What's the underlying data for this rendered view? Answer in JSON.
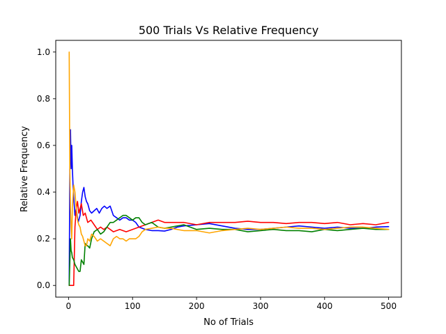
{
  "chart_data": {
    "type": "line",
    "title": "500 Trials Vs Relative Frequency",
    "xlabel": "No of Trials",
    "ylabel": "Relative Frequency",
    "xlim": [
      -20,
      520
    ],
    "ylim": [
      -0.05,
      1.05
    ],
    "xticks": [
      0,
      100,
      200,
      300,
      400,
      500
    ],
    "yticks": [
      0.0,
      0.2,
      0.4,
      0.6,
      0.8,
      1.0
    ],
    "xtick_labels": [
      "0",
      "100",
      "200",
      "300",
      "400",
      "500"
    ],
    "ytick_labels": [
      "0.0",
      "0.2",
      "0.4",
      "0.6",
      "0.8",
      "1.0"
    ],
    "grid": false,
    "legend": false,
    "series": [
      {
        "color": "#0000ff",
        "x": [
          1,
          2,
          3,
          4,
          5,
          6,
          7,
          8,
          10,
          12,
          15,
          18,
          20,
          22,
          24,
          26,
          28,
          30,
          33,
          36,
          40,
          44,
          48,
          52,
          56,
          60,
          65,
          70,
          75,
          80,
          85,
          90,
          95,
          100,
          105,
          110,
          115,
          120,
          130,
          140,
          150,
          160,
          170,
          180,
          200,
          220,
          240,
          260,
          280,
          300,
          320,
          340,
          360,
          380,
          400,
          420,
          440,
          460,
          480,
          500
        ],
        "y": [
          0.0,
          0.5,
          0.667,
          0.5,
          0.6,
          0.5,
          0.43,
          0.38,
          0.3,
          0.33,
          0.27,
          0.3,
          0.36,
          0.4,
          0.42,
          0.38,
          0.36,
          0.35,
          0.32,
          0.31,
          0.32,
          0.33,
          0.31,
          0.33,
          0.34,
          0.33,
          0.34,
          0.3,
          0.29,
          0.28,
          0.29,
          0.29,
          0.28,
          0.28,
          0.27,
          0.25,
          0.245,
          0.24,
          0.235,
          0.235,
          0.233,
          0.24,
          0.25,
          0.255,
          0.26,
          0.265,
          0.255,
          0.245,
          0.24,
          0.24,
          0.245,
          0.25,
          0.255,
          0.25,
          0.245,
          0.25,
          0.245,
          0.245,
          0.25,
          0.252
        ]
      },
      {
        "color": "#ff0000",
        "x": [
          1,
          2,
          3,
          4,
          5,
          6,
          8,
          10,
          12,
          14,
          16,
          18,
          20,
          23,
          26,
          30,
          35,
          40,
          45,
          50,
          55,
          60,
          70,
          80,
          90,
          100,
          110,
          120,
          130,
          140,
          150,
          160,
          180,
          200,
          220,
          240,
          260,
          280,
          300,
          320,
          340,
          360,
          380,
          400,
          420,
          440,
          460,
          480,
          500
        ],
        "y": [
          0.0,
          0.0,
          0.0,
          0.0,
          0.0,
          0.0,
          0.0,
          0.25,
          0.33,
          0.36,
          0.31,
          0.33,
          0.35,
          0.3,
          0.31,
          0.27,
          0.28,
          0.26,
          0.24,
          0.25,
          0.24,
          0.25,
          0.23,
          0.24,
          0.23,
          0.24,
          0.25,
          0.26,
          0.27,
          0.28,
          0.27,
          0.27,
          0.27,
          0.26,
          0.27,
          0.27,
          0.27,
          0.275,
          0.27,
          0.27,
          0.265,
          0.27,
          0.27,
          0.265,
          0.27,
          0.26,
          0.265,
          0.26,
          0.27
        ]
      },
      {
        "color": "#008000",
        "x": [
          1,
          2,
          3,
          4,
          5,
          6,
          8,
          10,
          12,
          14,
          16,
          18,
          20,
          22,
          24,
          26,
          28,
          30,
          33,
          36,
          40,
          45,
          50,
          55,
          60,
          65,
          70,
          75,
          80,
          85,
          90,
          95,
          100,
          105,
          110,
          115,
          120,
          130,
          140,
          150,
          160,
          180,
          200,
          220,
          240,
          260,
          280,
          300,
          320,
          340,
          360,
          380,
          400,
          420,
          440,
          460,
          480,
          500
        ],
        "y": [
          0.0,
          0.1,
          0.2,
          0.15,
          0.14,
          0.12,
          0.11,
          0.09,
          0.08,
          0.07,
          0.06,
          0.06,
          0.11,
          0.1,
          0.09,
          0.18,
          0.17,
          0.17,
          0.16,
          0.2,
          0.23,
          0.24,
          0.22,
          0.23,
          0.25,
          0.27,
          0.27,
          0.28,
          0.29,
          0.3,
          0.3,
          0.29,
          0.28,
          0.29,
          0.29,
          0.27,
          0.26,
          0.27,
          0.25,
          0.245,
          0.25,
          0.26,
          0.24,
          0.245,
          0.24,
          0.24,
          0.23,
          0.235,
          0.24,
          0.235,
          0.235,
          0.23,
          0.24,
          0.235,
          0.24,
          0.245,
          0.24,
          0.24
        ]
      },
      {
        "color": "#ffa500",
        "x": [
          1,
          2,
          3,
          4,
          5,
          6,
          8,
          10,
          12,
          14,
          16,
          18,
          20,
          22,
          24,
          26,
          28,
          30,
          33,
          36,
          40,
          45,
          50,
          55,
          60,
          65,
          70,
          75,
          80,
          85,
          90,
          95,
          100,
          105,
          110,
          115,
          120,
          130,
          140,
          150,
          160,
          180,
          200,
          220,
          240,
          260,
          280,
          300,
          320,
          340,
          360,
          380,
          400,
          420,
          440,
          460,
          480,
          500
        ],
        "y": [
          1.0,
          0.5,
          0.33,
          0.25,
          0.2,
          0.33,
          0.43,
          0.4,
          0.33,
          0.28,
          0.26,
          0.25,
          0.22,
          0.21,
          0.19,
          0.17,
          0.17,
          0.2,
          0.19,
          0.22,
          0.21,
          0.19,
          0.2,
          0.19,
          0.18,
          0.17,
          0.2,
          0.21,
          0.2,
          0.2,
          0.19,
          0.2,
          0.2,
          0.2,
          0.21,
          0.23,
          0.24,
          0.245,
          0.25,
          0.245,
          0.245,
          0.235,
          0.235,
          0.225,
          0.235,
          0.24,
          0.245,
          0.24,
          0.245,
          0.25,
          0.245,
          0.245,
          0.24,
          0.245,
          0.25,
          0.25,
          0.245,
          0.24
        ]
      }
    ]
  }
}
